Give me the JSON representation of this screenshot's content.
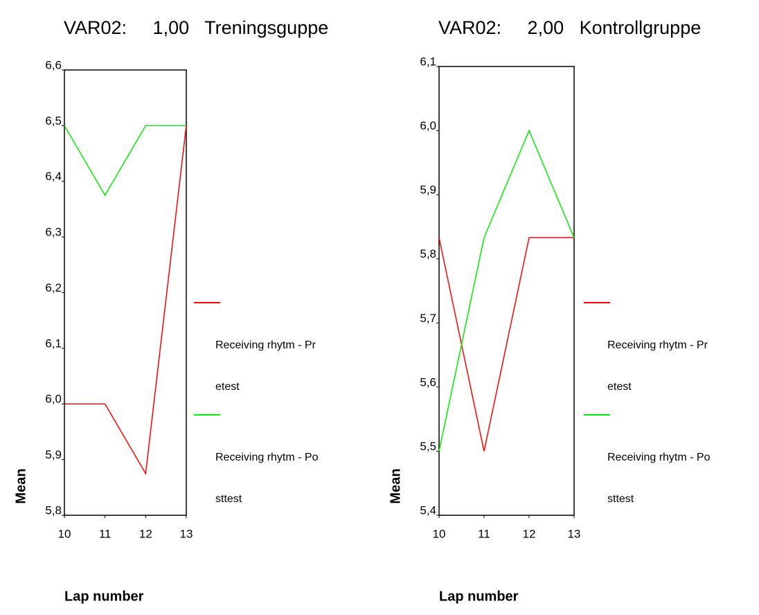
{
  "chart_data": [
    {
      "type": "line",
      "title": "VAR02:     1,00   Treningsguppe",
      "x_label": "Lap number",
      "y_label": "Mean",
      "x": [
        10,
        11,
        12,
        13
      ],
      "xlim": [
        10,
        13
      ],
      "xticks": [
        10,
        11,
        12,
        13
      ],
      "ylim": [
        5.8,
        6.6
      ],
      "yticks": [
        {
          "value": 5.8,
          "label": "5,8"
        },
        {
          "value": 5.9,
          "label": "5,9"
        },
        {
          "value": 6.0,
          "label": "6,0"
        },
        {
          "value": 6.1,
          "label": "6,1"
        },
        {
          "value": 6.2,
          "label": "6,2"
        },
        {
          "value": 6.3,
          "label": "6,3"
        },
        {
          "value": 6.4,
          "label": "6,4"
        },
        {
          "value": 6.5,
          "label": "6,5"
        },
        {
          "value": 6.6,
          "label": "6,6"
        }
      ],
      "series": [
        {
          "name": "Receiving rhytm - Pretest",
          "color": "#ff0000",
          "values": [
            6.0,
            6.0,
            5.875,
            6.5
          ]
        },
        {
          "name": "Receiving rhytm - Posttest",
          "color": "#00ee00",
          "values": [
            6.5,
            6.375,
            6.5,
            6.5
          ]
        }
      ]
    },
    {
      "type": "line",
      "title": "VAR02:     2,00   Kontrollgruppe",
      "x_label": "Lap number",
      "y_label": "Mean",
      "x": [
        10,
        11,
        12,
        13
      ],
      "xlim": [
        10,
        13
      ],
      "xticks": [
        10,
        11,
        12,
        13
      ],
      "ylim": [
        5.4,
        6.1
      ],
      "yticks": [
        {
          "value": 5.4,
          "label": "5,4"
        },
        {
          "value": 5.5,
          "label": "5,5"
        },
        {
          "value": 5.6,
          "label": "5,6"
        },
        {
          "value": 5.7,
          "label": "5,7"
        },
        {
          "value": 5.8,
          "label": "5,8"
        },
        {
          "value": 5.9,
          "label": "5,9"
        },
        {
          "value": 6.0,
          "label": "6,0"
        },
        {
          "value": 6.1,
          "label": "6,1"
        }
      ],
      "series": [
        {
          "name": "Receiving rhytm - Pretest",
          "color": "#ff0000",
          "values": [
            5.833,
            5.5,
            5.833,
            5.833
          ]
        },
        {
          "name": "Receiving rhytm - Posttest",
          "color": "#00ee00",
          "values": [
            5.5,
            5.833,
            6.0,
            5.833
          ]
        }
      ]
    }
  ]
}
